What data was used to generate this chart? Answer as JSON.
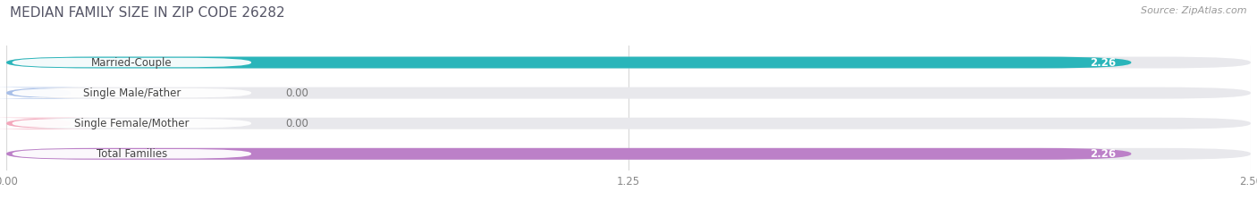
{
  "title": "MEDIAN FAMILY SIZE IN ZIP CODE 26282",
  "source": "Source: ZipAtlas.com",
  "categories": [
    "Married-Couple",
    "Single Male/Father",
    "Single Female/Mother",
    "Total Families"
  ],
  "values": [
    2.26,
    0.0,
    0.0,
    2.26
  ],
  "bar_colors": [
    "#2ab5ba",
    "#a8bfe8",
    "#f4a8bc",
    "#bc80c8"
  ],
  "xlim": [
    0,
    2.5
  ],
  "xticks": [
    0.0,
    1.25,
    2.5
  ],
  "xtick_labels": [
    "0.00",
    "1.25",
    "2.50"
  ],
  "bar_height": 0.38,
  "fig_width": 14.06,
  "fig_height": 2.33,
  "dpi": 100,
  "title_fontsize": 11,
  "label_fontsize": 8.5,
  "value_fontsize": 8.5,
  "tick_fontsize": 8.5,
  "source_fontsize": 8,
  "background_color": "#ffffff",
  "bar_track_color": "#e8e8ec",
  "grid_color": "#d8d8d8"
}
